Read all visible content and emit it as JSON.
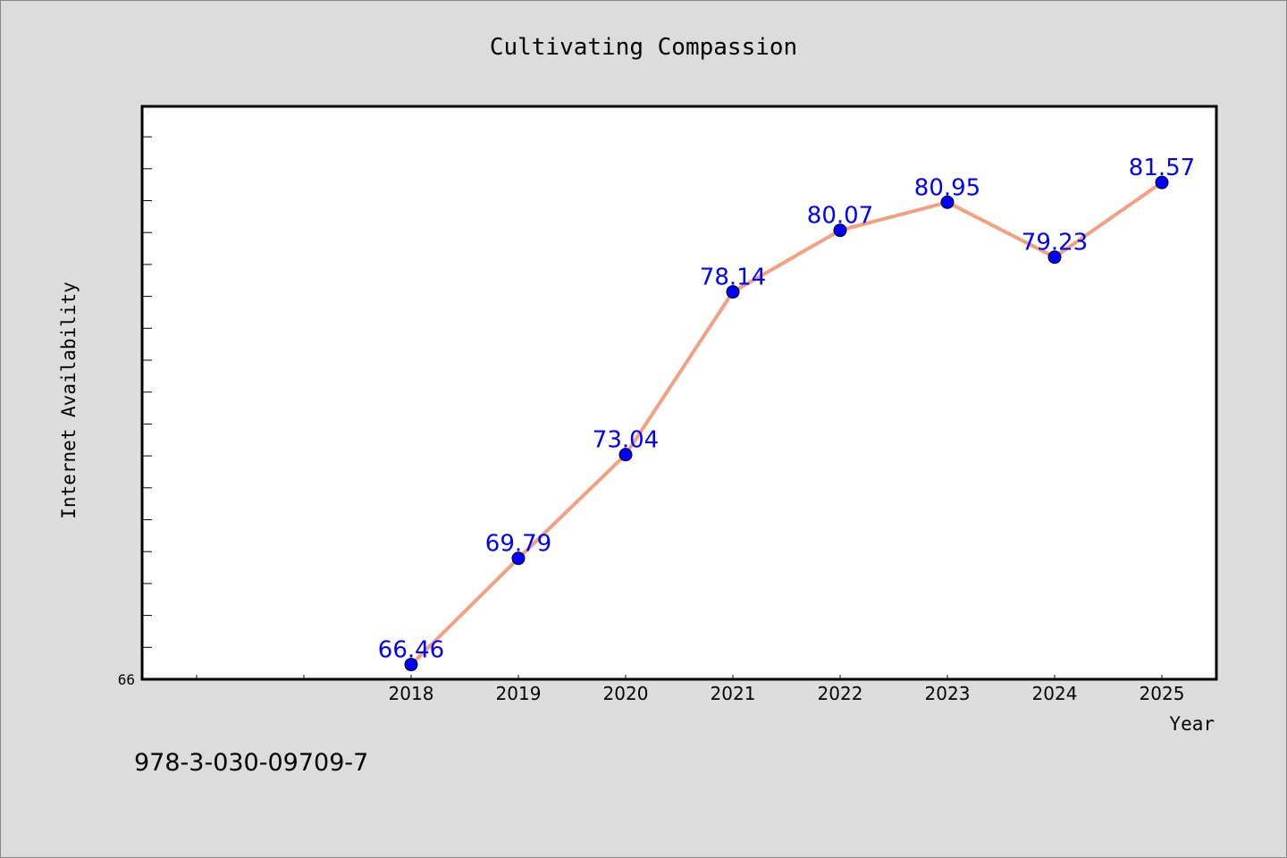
{
  "chart_data": {
    "type": "line",
    "title": "Cultivating Compassion",
    "xlabel": "Year",
    "ylabel": "Internet Availability",
    "categories": [
      "2018",
      "2019",
      "2020",
      "2021",
      "2022",
      "2023",
      "2024",
      "2025"
    ],
    "series": [
      {
        "values": [
          66.46,
          69.79,
          73.04,
          78.14,
          80.07,
          80.95,
          79.23,
          81.57
        ]
      }
    ],
    "y_tick_labels": [
      "66"
    ],
    "ylim": [
      66,
      84
    ],
    "grid": false,
    "line_color": "#f4a080",
    "marker_color": "#0000ff",
    "label_color": "#0000ff"
  },
  "footer_text": "978-3-030-09709-7"
}
